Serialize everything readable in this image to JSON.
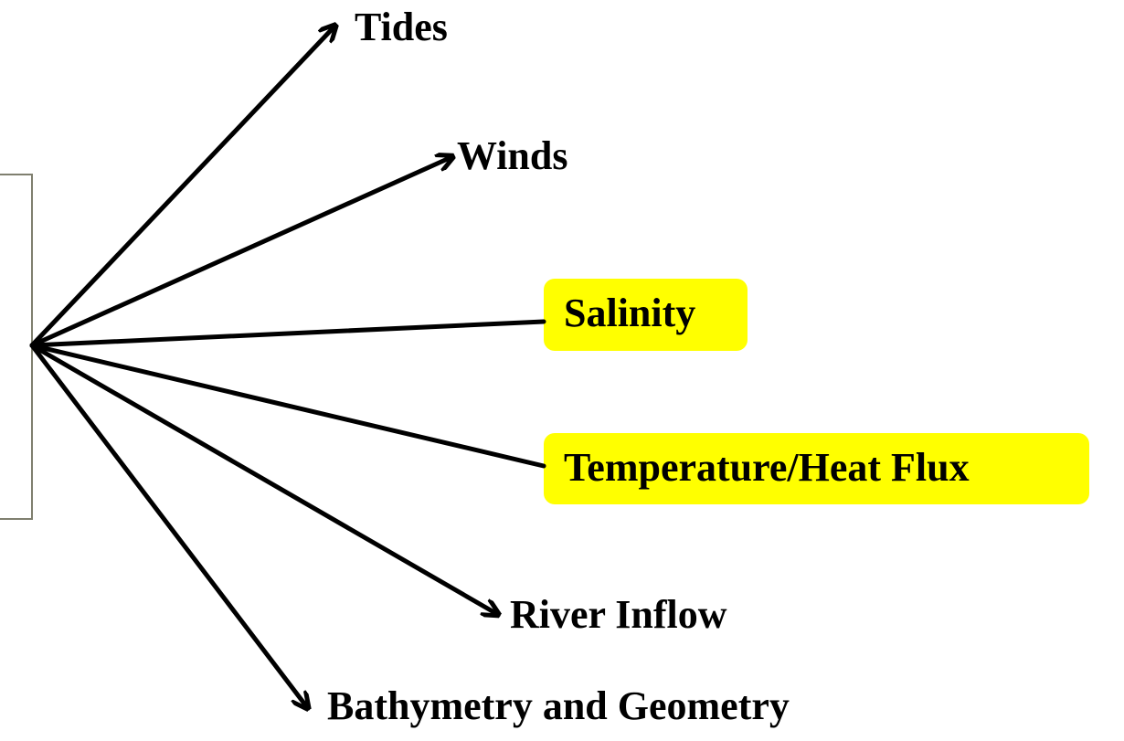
{
  "nodes": [
    {
      "label": "Tides"
    },
    {
      "label": "Winds"
    },
    {
      "label": "Salinity"
    },
    {
      "label": "Temperature/Heat Flux"
    },
    {
      "label": "River Inflow"
    },
    {
      "label": "Bathymetry and Geometry"
    }
  ]
}
